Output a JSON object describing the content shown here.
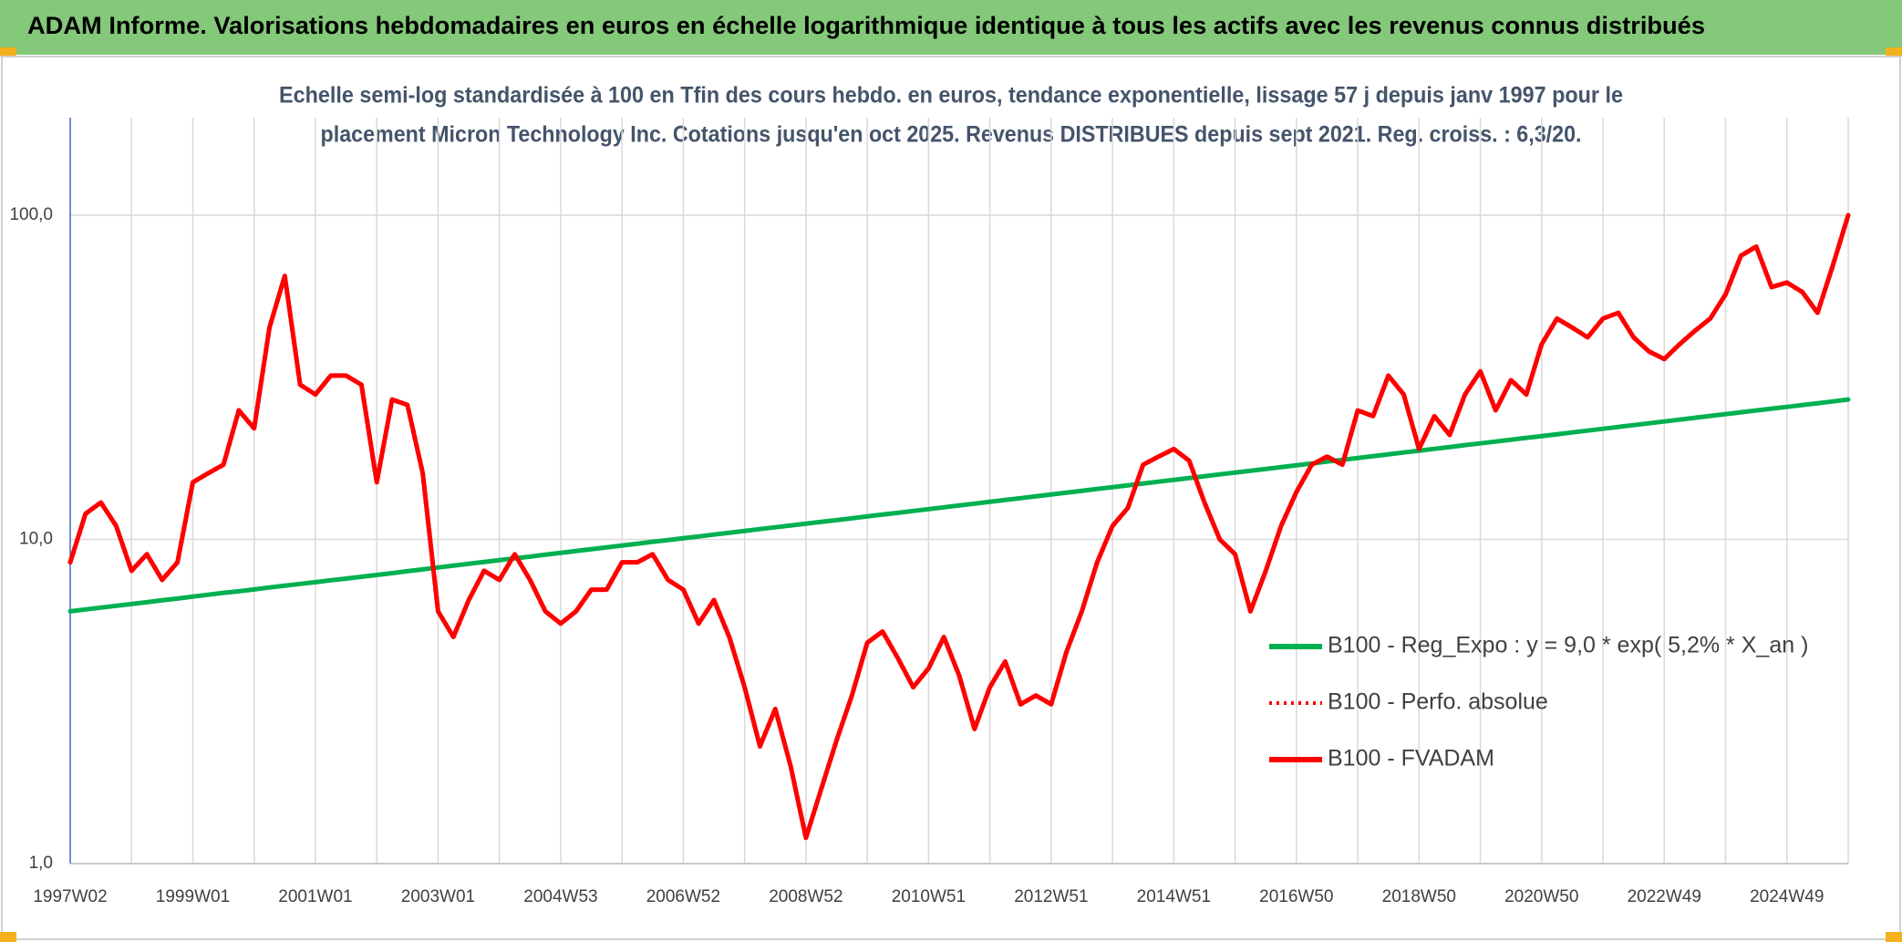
{
  "chart_data": {
    "type": "line",
    "title": "ADAM Informe. Valorisations hebdomadaires en euros en échelle logarithmique identique à tous les actifs avec les revenus connus distribués",
    "subtitle": [
      "Echelle semi-log standardisée à 100 en Tfin des cours hebdo. en euros, tendance exponentielle, lissage 57 j depuis janv 1997 pour le",
      "placement Micron Technology Inc. Cotations jusqu'en oct 2025. Revenus DISTRIBUES depuis sept 2021. Reg. croiss. : 6,3/20."
    ],
    "log_y": true,
    "grid": true,
    "legend": "right",
    "ylim": [
      1,
      200
    ],
    "yticks": [
      {
        "value": 1,
        "label": "1,0"
      },
      {
        "value": 10,
        "label": "10,0"
      },
      {
        "value": 100,
        "label": "100,0"
      }
    ],
    "categories": [
      "1997W02",
      null,
      null,
      null,
      null,
      null,
      null,
      null,
      "1999W01",
      null,
      null,
      null,
      null,
      null,
      null,
      null,
      "2001W01",
      null,
      null,
      null,
      null,
      null,
      null,
      null,
      "2003W01",
      null,
      null,
      null,
      null,
      null,
      null,
      null,
      "2004W53",
      null,
      null,
      null,
      null,
      null,
      null,
      null,
      "2006W52",
      null,
      null,
      null,
      null,
      null,
      null,
      null,
      "2008W52",
      null,
      null,
      null,
      null,
      null,
      null,
      null,
      "2010W51",
      null,
      null,
      null,
      null,
      null,
      null,
      null,
      "2012W51",
      null,
      null,
      null,
      null,
      null,
      null,
      null,
      "2014W51",
      null,
      null,
      null,
      null,
      null,
      null,
      null,
      "2016W50",
      null,
      null,
      null,
      null,
      null,
      null,
      null,
      "2018W50",
      null,
      null,
      null,
      null,
      null,
      null,
      null,
      "2020W50",
      null,
      null,
      null,
      null,
      null,
      null,
      null,
      "2022W49",
      null,
      null,
      null,
      null,
      null,
      null,
      null,
      "2024W49",
      null,
      null,
      null,
      null
    ],
    "series": [
      {
        "name": "B100 - Reg_Expo : y = 9,0 * exp( 5,2% *  X_an )",
        "color": "#00b050",
        "style": "solid",
        "values": [
          6.0,
          6.08,
          6.16,
          6.24,
          6.32,
          6.4,
          6.49,
          6.57,
          6.66,
          6.75,
          6.84,
          6.92,
          7.01,
          7.11,
          7.2,
          7.29,
          7.38,
          7.48,
          7.57,
          7.67,
          7.77,
          7.87,
          7.98,
          8.08,
          8.19,
          8.3,
          8.41,
          8.52,
          8.63,
          8.74,
          8.85,
          8.97,
          9.09,
          9.21,
          9.33,
          9.45,
          9.57,
          9.7,
          9.83,
          9.95,
          10.08,
          10.21,
          10.35,
          10.48,
          10.62,
          10.76,
          10.9,
          11.04,
          11.18,
          11.33,
          11.47,
          11.62,
          11.78,
          11.93,
          12.08,
          12.24,
          12.4,
          12.56,
          12.73,
          12.89,
          13.06,
          13.23,
          13.4,
          13.58,
          13.76,
          13.94,
          14.12,
          14.31,
          14.49,
          14.68,
          14.87,
          15.07,
          15.26,
          15.46,
          15.66,
          15.87,
          16.07,
          16.28,
          16.49,
          16.71,
          16.93,
          17.15,
          17.38,
          17.6,
          17.83,
          18.06,
          18.3,
          18.54,
          18.78,
          19.03,
          19.27,
          19.53,
          19.78,
          20.04,
          20.3,
          20.57,
          20.83,
          21.1,
          21.38,
          21.66,
          21.94,
          22.23,
          22.52,
          22.81,
          23.11,
          23.41,
          23.72,
          24.03,
          24.34,
          24.66,
          24.98,
          25.31,
          25.63,
          25.97,
          26.3,
          26.65,
          27.0
        ]
      },
      {
        "name": "B100 - Perfo. absolue",
        "color": "#ff0000",
        "style": "dotted",
        "values": [
          8.5,
          12,
          13,
          11,
          8,
          9,
          7.5,
          8.5,
          15,
          16,
          17,
          25,
          22,
          45,
          65,
          30,
          28,
          32,
          32,
          30,
          15,
          27,
          26,
          16,
          6,
          5,
          6.5,
          8,
          7.5,
          9,
          7.5,
          6,
          5.5,
          6,
          7,
          7,
          8.5,
          8.5,
          9,
          7.5,
          7,
          5.5,
          6.5,
          5,
          3.5,
          2.3,
          3,
          2,
          1.2,
          1.7,
          2.4,
          3.3,
          4.8,
          5.2,
          4.3,
          3.5,
          4,
          5,
          3.8,
          2.6,
          3.5,
          4.2,
          3.1,
          3.3,
          3.1,
          4.5,
          6,
          8.5,
          11,
          12.5,
          17,
          18,
          19,
          17.5,
          13,
          10,
          9,
          6,
          8,
          11,
          14,
          17,
          18,
          17,
          25,
          24,
          32,
          28,
          19,
          24,
          21,
          28,
          33,
          25,
          31,
          28,
          40,
          48,
          45,
          42,
          48,
          50,
          42,
          38,
          36,
          40,
          44,
          48,
          57,
          75,
          80,
          60,
          62,
          58,
          50,
          70,
          100
        ]
      },
      {
        "name": "B100 - FVADAM",
        "color": "#ff0000",
        "style": "solid",
        "values": [
          8.5,
          12,
          13,
          11,
          8,
          9,
          7.5,
          8.5,
          15,
          16,
          17,
          25,
          22,
          45,
          65,
          30,
          28,
          32,
          32,
          30,
          15,
          27,
          26,
          16,
          6,
          5,
          6.5,
          8,
          7.5,
          9,
          7.5,
          6,
          5.5,
          6,
          7,
          7,
          8.5,
          8.5,
          9,
          7.5,
          7,
          5.5,
          6.5,
          5,
          3.5,
          2.3,
          3,
          2,
          1.2,
          1.7,
          2.4,
          3.3,
          4.8,
          5.2,
          4.3,
          3.5,
          4,
          5,
          3.8,
          2.6,
          3.5,
          4.2,
          3.1,
          3.3,
          3.1,
          4.5,
          6,
          8.5,
          11,
          12.5,
          17,
          18,
          19,
          17.5,
          13,
          10,
          9,
          6,
          8,
          11,
          14,
          17,
          18,
          17,
          25,
          24,
          32,
          28,
          19,
          24,
          21,
          28,
          33,
          25,
          31,
          28,
          40,
          48,
          45,
          42,
          48,
          50,
          42,
          38,
          36,
          40,
          44,
          48,
          57,
          75,
          80,
          60,
          62,
          58,
          50,
          70,
          100
        ]
      }
    ]
  }
}
